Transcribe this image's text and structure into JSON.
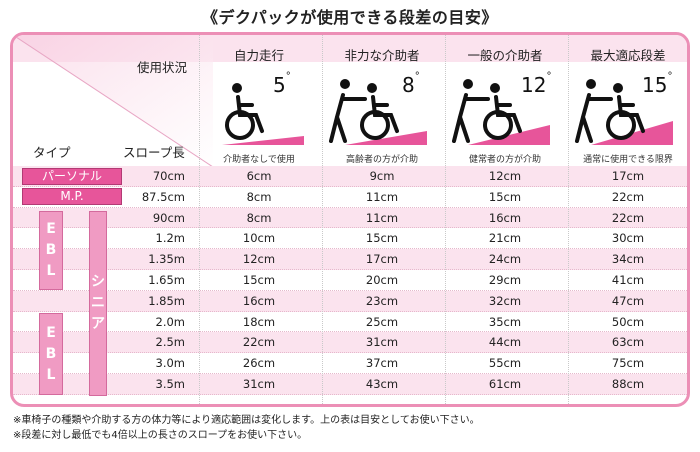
{
  "title": "《デクパックが使用できる段差の目安》",
  "header": {
    "usage_label": "使用状況",
    "type_label": "タイプ",
    "slope_label": "スロープ長"
  },
  "columns": [
    {
      "name": "自力走行",
      "degree": "5",
      "caption": "介助者なしで使用"
    },
    {
      "name": "非力な介助者",
      "degree": "8",
      "caption": "高齢者の方が介助"
    },
    {
      "name": "一般の介助者",
      "degree": "12",
      "caption": "健常者の方が介助"
    },
    {
      "name": "最大適応段差",
      "degree": "15",
      "caption": "通常に使用できる限界"
    }
  ],
  "degree_symbol": "°",
  "types": {
    "personal": "パーソナル",
    "mp": "M.P.",
    "ebl1": [
      "E",
      "B",
      "L"
    ],
    "senior": [
      "シ",
      "ニ",
      "ア"
    ],
    "ebl2": [
      "E",
      "B",
      "L"
    ]
  },
  "rows": [
    {
      "slope": "70cm",
      "v": [
        "6cm",
        "9cm",
        "12cm",
        "17cm"
      ]
    },
    {
      "slope": "87.5cm",
      "v": [
        "8cm",
        "11cm",
        "15cm",
        "22cm"
      ]
    },
    {
      "slope": "90cm",
      "v": [
        "8cm",
        "11cm",
        "16cm",
        "22cm"
      ]
    },
    {
      "slope": "1.2m",
      "v": [
        "10cm",
        "15cm",
        "21cm",
        "30cm"
      ]
    },
    {
      "slope": "1.35m",
      "v": [
        "12cm",
        "17cm",
        "24cm",
        "34cm"
      ]
    },
    {
      "slope": "1.65m",
      "v": [
        "15cm",
        "20cm",
        "29cm",
        "41cm"
      ]
    },
    {
      "slope": "1.85m",
      "v": [
        "16cm",
        "23cm",
        "32cm",
        "47cm"
      ]
    },
    {
      "slope": "2.0m",
      "v": [
        "18cm",
        "25cm",
        "35cm",
        "50cm"
      ]
    },
    {
      "slope": "2.5m",
      "v": [
        "22cm",
        "31cm",
        "44cm",
        "63cm"
      ]
    },
    {
      "slope": "3.0m",
      "v": [
        "26cm",
        "37cm",
        "55cm",
        "75cm"
      ]
    },
    {
      "slope": "3.5m",
      "v": [
        "31cm",
        "43cm",
        "61cm",
        "88cm"
      ]
    }
  ],
  "notes": [
    "※車椅子の種類や介助する方の体力等により適応範囲は変化します。上の表は目安としてお使い下さい。",
    "※段差に対し最低でも4倍以上の長さのスロープをお使い下さい。"
  ],
  "colors": {
    "accent": "#e7559a",
    "frame": "#ec8fb6",
    "band": "#fbe3ee"
  }
}
